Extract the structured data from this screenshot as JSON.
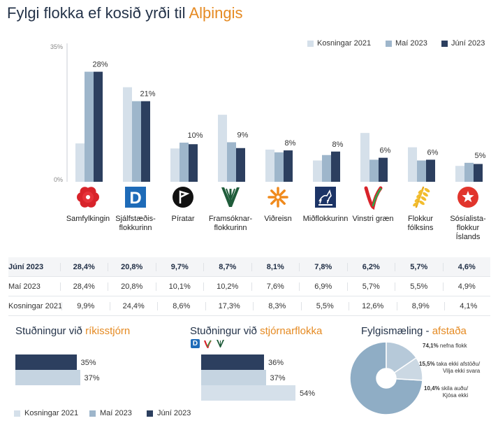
{
  "title": {
    "prefix": "Fylgi flokka ef kosið yrði til ",
    "accent": "Alþingis"
  },
  "legend": [
    "Kosningar 2021",
    "Maí 2023",
    "Júní 2023"
  ],
  "colors": {
    "s2021": "#d5e0ea",
    "smai": "#9eb6cb",
    "sjuni": "#2c3f5f",
    "accent": "#e58a22",
    "navy": "#243349"
  },
  "chart_data": {
    "type": "bar",
    "ylim": [
      0,
      35
    ],
    "yticks": [
      "35%",
      "0%"
    ],
    "categories": [
      "Samfylkingin",
      "Sjálfstæðis-flokkurinn",
      "Píratar",
      "Framsóknar-flokkurinn",
      "Viðreisn",
      "Miðflokkurinn",
      "Vinstri græn",
      "Flokkur fólksins",
      "Sósíalista-flokkur Íslands"
    ],
    "category_lines": [
      [
        "Samfylkingin"
      ],
      [
        "Sjálfstæðis-",
        "flokkurinn"
      ],
      [
        "Píratar"
      ],
      [
        "Framsóknar-",
        "flokkurinn"
      ],
      [
        "Viðreisn"
      ],
      [
        "Miðflokkurinn"
      ],
      [
        "Vinstri græn"
      ],
      [
        "Flokkur",
        "fólksins"
      ],
      [
        "Sósíalista-",
        "flokkur",
        "Íslands"
      ]
    ],
    "series": [
      {
        "name": "Kosningar 2021",
        "values": [
          9.9,
          24.4,
          8.6,
          17.3,
          8.3,
          5.5,
          12.6,
          8.9,
          4.1
        ]
      },
      {
        "name": "Maí 2023",
        "values": [
          28.4,
          20.8,
          10.1,
          10.2,
          7.6,
          6.9,
          5.7,
          5.5,
          4.9
        ]
      },
      {
        "name": "Júní 2023",
        "values": [
          28.4,
          20.8,
          9.7,
          8.7,
          8.1,
          7.8,
          6.2,
          5.7,
          4.6
        ]
      }
    ],
    "bar_labels": [
      "28%",
      "21%",
      "10%",
      "9%",
      "8%",
      "8%",
      "6%",
      "6%",
      "5%"
    ]
  },
  "logo_icons": [
    "rose-icon",
    "d-letter-icon",
    "pirate-flag-icon",
    "framsokn-icon",
    "vidreisn-star-icon",
    "horse-icon",
    "vinstri-v-icon",
    "wheat-icon",
    "socialist-star-icon"
  ],
  "table": {
    "rows": [
      {
        "label": "Júní 2023",
        "values": [
          "28,4%",
          "20,8%",
          "9,7%",
          "8,7%",
          "8,1%",
          "7,8%",
          "6,2%",
          "5,7%",
          "4,6%"
        ]
      },
      {
        "label": "Maí 2023",
        "values": [
          "28,4%",
          "20,8%",
          "10,1%",
          "10,2%",
          "7,6%",
          "6,9%",
          "5,7%",
          "5,5%",
          "4,9%"
        ]
      },
      {
        "label": "Kosningar 2021",
        "values": [
          "9,9%",
          "24,4%",
          "8,6%",
          "17,3%",
          "8,3%",
          "5,5%",
          "12,6%",
          "8,9%",
          "4,1%"
        ]
      }
    ]
  },
  "gov_support": {
    "title_prefix": "Stuðningur við ",
    "title_accent": "ríkisstjórn",
    "bars": [
      {
        "series": "Júní 2023",
        "value": 35,
        "label": "35%"
      },
      {
        "series": "Maí 2023",
        "value": 37,
        "label": "37%"
      }
    ]
  },
  "coalition_support": {
    "title_prefix": "Stuðningur við ",
    "title_accent": "stjórnarflokka",
    "icons": [
      "d-letter-icon",
      "vinstri-v-icon",
      "framsokn-icon"
    ],
    "bars": [
      {
        "series": "Júní 2023",
        "value": 36,
        "label": "36%"
      },
      {
        "series": "Maí 2023",
        "value": 37,
        "label": "37%"
      },
      {
        "series": "Kosningar 2021",
        "value": 54,
        "label": "54%"
      }
    ]
  },
  "stance": {
    "title_prefix": "Fylgismæling - ",
    "title_accent": "afstaða",
    "slices": [
      {
        "pct": "74,1%",
        "text": "nefna flokk",
        "value": 74.1
      },
      {
        "pct": "15,5%",
        "text": "taka ekki afstöðu/",
        "text2": "Vilja ekki svara",
        "value": 15.5
      },
      {
        "pct": "10,4%",
        "text": "skila auðu/",
        "text2": "Kjósa ekki",
        "value": 10.4
      }
    ]
  },
  "bottom_legend": [
    "Kosningar 2021",
    "Maí 2023",
    "Júní 2023"
  ]
}
